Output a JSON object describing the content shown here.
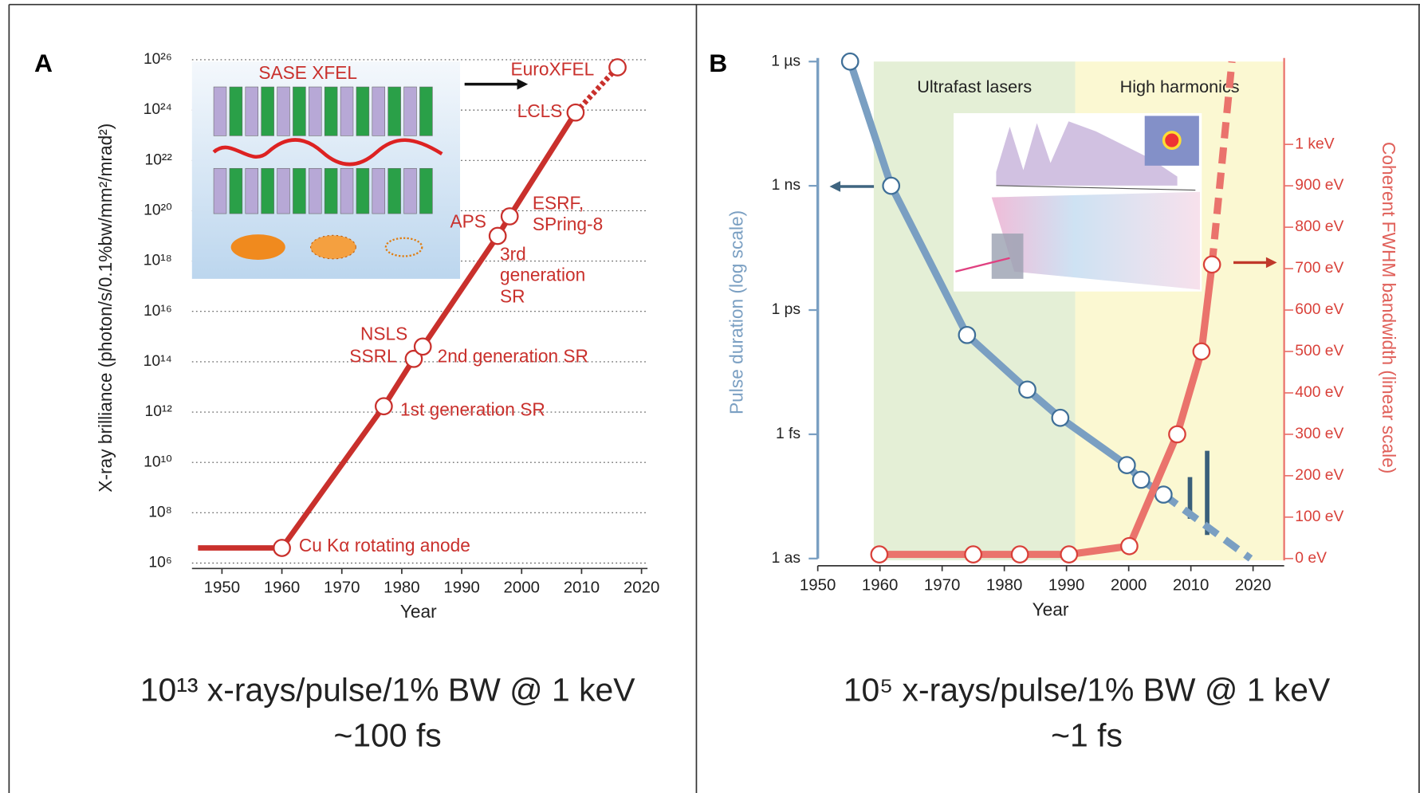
{
  "chart_data": [
    {
      "type": "line",
      "panel_label": "A",
      "xlabel": "Year",
      "ylabel": "X-ray brilliance (photon/s/0.1%bw/mm²/mrad²)",
      "xlim": [
        1945,
        2021
      ],
      "xticks": [
        1950,
        1960,
        1970,
        1980,
        1990,
        2000,
        2010,
        2020
      ],
      "yscale": "log",
      "ylim": [
        1000000.0,
        1e+26
      ],
      "yticks": [
        {
          "value": 1000000.0,
          "label": "10⁶"
        },
        {
          "value": 100000000.0,
          "label": "10⁸"
        },
        {
          "value": 10000000000.0,
          "label": "10¹⁰"
        },
        {
          "value": 1000000000000.0,
          "label": "10¹²"
        },
        {
          "value": 100000000000000.0,
          "label": "10¹⁴"
        },
        {
          "value": 1e+16,
          "label": "10¹⁶"
        },
        {
          "value": 1e+18,
          "label": "10¹⁸"
        },
        {
          "value": 1e+20,
          "label": "10²⁰"
        },
        {
          "value": 1e+22,
          "label": "10²²"
        },
        {
          "value": 1e+24,
          "label": "10²⁴"
        },
        {
          "value": 1e+26,
          "label": "10²⁶"
        }
      ],
      "grid": true,
      "series": [
        {
          "color": "#c9302c",
          "x": [
            1946,
            1960,
            1977,
            1982,
            1983.5,
            1996,
            1998,
            2009,
            2016
          ],
          "values": [
            4000000.0,
            4000000.0,
            1700000000000.0,
            130000000000000.0,
            400000000000000.0,
            1e+19,
            6e+19,
            8e+23,
            5e+25
          ],
          "markers": [
            false,
            true,
            true,
            true,
            true,
            true,
            true,
            true,
            true
          ],
          "dash_from": 7
        }
      ],
      "annotations": [
        "SASE XFEL",
        "EuroXFEL",
        "LCLS",
        "ESRF,",
        "SPring-8",
        "APS",
        "3rd",
        "generation",
        "SR",
        "NSLS",
        "SSRL",
        "2nd generation SR",
        "1st generation SR",
        "Cu Kα rotating anode"
      ],
      "caption": [
        "10¹³ x-rays/pulse/1% BW @ 1 keV",
        "~100 fs"
      ]
    },
    {
      "type": "line",
      "panel_label": "B",
      "xlabel": "Year",
      "ylabel": "Pulse duration (log scale)",
      "y2label": "Coherent FWHM bandwidth (linear scale)",
      "xlim": [
        1950,
        2025
      ],
      "xticks": [
        1950,
        1960,
        1970,
        1980,
        1990,
        2000,
        2010,
        2020
      ],
      "yscale": "log",
      "ylim": [
        1e-18,
        1e-06
      ],
      "yticks": [
        {
          "value": 1e-18,
          "label": "1 as"
        },
        {
          "value": 1e-15,
          "label": "1 fs"
        },
        {
          "value": 1e-12,
          "label": "1 ps"
        },
        {
          "value": 1e-09,
          "label": "1 ns"
        },
        {
          "value": 1e-06,
          "label": "1 µs"
        }
      ],
      "y2lim": [
        0,
        1200
      ],
      "y2ticks": [
        {
          "value": 0,
          "label": "0 eV"
        },
        {
          "value": 100,
          "label": "100 eV"
        },
        {
          "value": 200,
          "label": "200 eV"
        },
        {
          "value": 300,
          "label": "300 eV"
        },
        {
          "value": 400,
          "label": "400 eV"
        },
        {
          "value": 500,
          "label": "500 eV"
        },
        {
          "value": 600,
          "label": "600 eV"
        },
        {
          "value": 700,
          "label": "700 eV"
        },
        {
          "value": 800,
          "label": "800 eV"
        },
        {
          "value": 900,
          "label": "900 eV"
        },
        {
          "value": 1000,
          "label": "1 keV"
        }
      ],
      "bands": [
        {
          "from": 1959,
          "to": 1991.4,
          "label": "Ultrafast lasers",
          "color": "#e4efd6"
        },
        {
          "from": 1991.4,
          "to": 2025,
          "label": "High harmonics",
          "color": "#fbf8d2"
        }
      ],
      "series": [
        {
          "color": "#7a9fc2",
          "x": [
            1955.2,
            1961.8,
            1974,
            1983.7,
            1989,
            1999.7,
            2002,
            2005.6,
            2019.6
          ],
          "values": [
            1e-06,
            1e-09,
            2.5e-13,
            1.2e-14,
            2.5e-15,
            1.8e-16,
            8e-17,
            3.5e-17,
            1e-18
          ],
          "markers": [
            true,
            true,
            true,
            true,
            true,
            true,
            true,
            true,
            false
          ],
          "dash_from": 7
        },
        {
          "color": "#ea736c",
          "axis": "y2",
          "x": [
            1959.9,
            1975,
            1982.5,
            1990.4,
            2000.1,
            2007.8,
            2011.7,
            2013.4,
            2016.6
          ],
          "values": [
            10,
            10,
            10,
            10,
            30,
            300,
            500,
            710,
            1200
          ],
          "markers": [
            true,
            true,
            true,
            true,
            true,
            true,
            true,
            true,
            false
          ],
          "dash_from": 7
        }
      ],
      "caption": [
        "10⁵ x-rays/pulse/1% BW @ 1 keV",
        "~1 fs"
      ]
    }
  ]
}
